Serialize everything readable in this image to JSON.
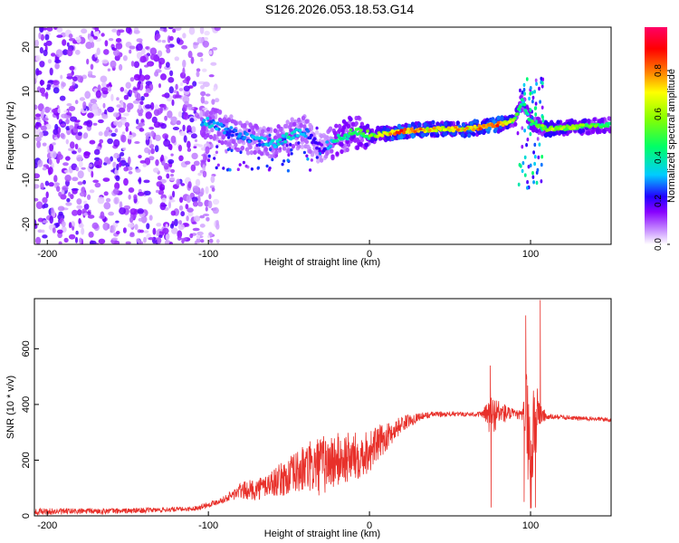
{
  "title": "S126.2026.053.18.53.G14",
  "chart_data": [
    {
      "type": "heatmap",
      "xlabel": "Height of straight line (km)",
      "ylabel": "Frequency (Hz)",
      "xlim": [
        -208,
        150
      ],
      "ylim": [
        -24.5,
        24.5
      ],
      "xticks": [
        -200,
        -100,
        0,
        100
      ],
      "yticks": [
        -20,
        -10,
        0,
        10,
        20
      ],
      "colorbar": {
        "label": "Normalized spectral amplitude",
        "range": [
          0.0,
          1.0
        ],
        "ticks": [
          0.0,
          0.2,
          0.4,
          0.6,
          0.8
        ],
        "colors": [
          "#ffffff",
          "#cc99ff",
          "#8800ff",
          "#2200ff",
          "#00ccff",
          "#00ff66",
          "#88ff00",
          "#ffff00",
          "#ff7700",
          "#ff0000",
          "#ff0066"
        ]
      },
      "ridge": {
        "description": "dominant frequency trace",
        "x": [
          -100,
          -80,
          -60,
          -50,
          -40,
          -30,
          -20,
          -10,
          0,
          20,
          40,
          60,
          80,
          90,
          95,
          100,
          110,
          130,
          150
        ],
        "freq": [
          3,
          0,
          -2,
          0,
          1,
          -3,
          -1,
          1,
          0,
          1,
          1.5,
          1.5,
          2.5,
          3.5,
          8,
          3,
          1.5,
          2,
          2.5
        ],
        "amplitude": [
          0.35,
          0.3,
          0.35,
          0.4,
          0.3,
          0.2,
          0.45,
          0.5,
          0.55,
          0.9,
          0.75,
          0.8,
          0.85,
          0.6,
          0.4,
          0.5,
          0.65,
          0.6,
          0.5
        ]
      },
      "noise_region": {
        "x_from": -208,
        "x_to": -100,
        "max_amplitude": 0.2
      }
    },
    {
      "type": "line",
      "xlabel": "Height of straight line (km)",
      "ylabel": "SNR (10 * v/v)",
      "xlim": [
        -208,
        150
      ],
      "ylim": [
        0,
        780
      ],
      "xticks": [
        -200,
        -100,
        0,
        100
      ],
      "yticks": [
        0,
        200,
        400,
        600
      ],
      "series": [
        {
          "name": "SNR",
          "color": "#e8302a",
          "x": [
            -208,
            -150,
            -110,
            -100,
            -90,
            -80,
            -70,
            -60,
            -50,
            -40,
            -30,
            -20,
            -10,
            0,
            10,
            20,
            30,
            40,
            50,
            60,
            70,
            75,
            80,
            90,
            95,
            98,
            100,
            102,
            105,
            110,
            120,
            130,
            140,
            150
          ],
          "y": [
            15,
            18,
            25,
            40,
            60,
            90,
            95,
            120,
            140,
            170,
            180,
            200,
            210,
            235,
            280,
            330,
            355,
            365,
            365,
            365,
            365,
            360,
            370,
            365,
            360,
            370,
            140,
            330,
            370,
            355,
            355,
            350,
            348,
            345
          ],
          "noise": [
            12,
            10,
            8,
            10,
            12,
            30,
            40,
            50,
            70,
            90,
            110,
            100,
            90,
            80,
            50,
            30,
            15,
            10,
            8,
            8,
            10,
            80,
            50,
            15,
            20,
            200,
            180,
            220,
            60,
            10,
            8,
            8,
            8,
            8
          ],
          "spikes": [
            {
              "x": 75,
              "y": 540
            },
            {
              "x": 75.5,
              "y": 30
            },
            {
              "x": 96,
              "y": 50
            },
            {
              "x": 97,
              "y": 720
            },
            {
              "x": 103,
              "y": 30
            },
            {
              "x": 106,
              "y": 775
            }
          ]
        }
      ]
    }
  ]
}
